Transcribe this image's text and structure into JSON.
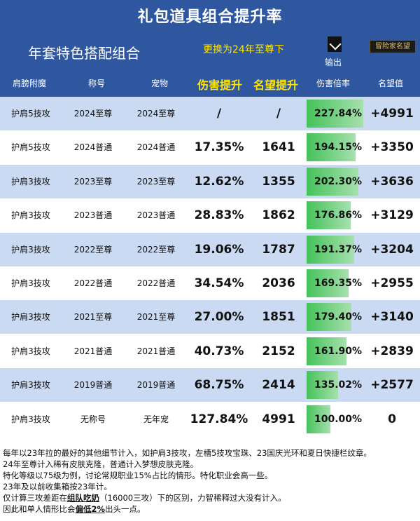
{
  "header": {
    "title": "礼包道具组合提升率",
    "subtitle": "年套特色搭配组合",
    "switch_label": "更换为24年至尊下",
    "export_label": "输出",
    "badge_label": "冒险家名望"
  },
  "columns": [
    "肩膀附魔",
    "称号",
    "宠物",
    "伤害提升",
    "名望提升",
    "伤害倍率",
    "名望值"
  ],
  "rows": [
    {
      "enchant": "护肩5技攻",
      "title": "2024至尊",
      "pet": "2024至尊",
      "dmg_up": "/",
      "fame_up": "/",
      "ratio": "227.84%",
      "ratio_fill": 0.9,
      "fame": "+4991"
    },
    {
      "enchant": "护肩5技攻",
      "title": "2024普通",
      "pet": "2024普通",
      "dmg_up": "17.35%",
      "fame_up": "1641",
      "ratio": "194.15%",
      "ratio_fill": 0.78,
      "fame": "+3350"
    },
    {
      "enchant": "护肩3技攻",
      "title": "2023至尊",
      "pet": "2023至尊",
      "dmg_up": "12.62%",
      "fame_up": "1355",
      "ratio": "202.30%",
      "ratio_fill": 0.82,
      "fame": "+3636"
    },
    {
      "enchant": "护肩3技攻",
      "title": "2023普通",
      "pet": "2023普通",
      "dmg_up": "28.83%",
      "fame_up": "1862",
      "ratio": "176.86%",
      "ratio_fill": 0.7,
      "fame": "+3129"
    },
    {
      "enchant": "护肩3技攻",
      "title": "2022至尊",
      "pet": "2022至尊",
      "dmg_up": "19.06%",
      "fame_up": "1787",
      "ratio": "191.37%",
      "ratio_fill": 0.76,
      "fame": "+3204"
    },
    {
      "enchant": "护肩3技攻",
      "title": "2022普通",
      "pet": "2022普通",
      "dmg_up": "34.54%",
      "fame_up": "2036",
      "ratio": "169.35%",
      "ratio_fill": 0.67,
      "fame": "+2955"
    },
    {
      "enchant": "护肩3技攻",
      "title": "2021至尊",
      "pet": "2021至尊",
      "dmg_up": "27.00%",
      "fame_up": "1851",
      "ratio": "179.40%",
      "ratio_fill": 0.71,
      "fame": "+3140"
    },
    {
      "enchant": "护肩3技攻",
      "title": "2021普通",
      "pet": "2021普通",
      "dmg_up": "40.73%",
      "fame_up": "2152",
      "ratio": "161.90%",
      "ratio_fill": 0.63,
      "fame": "+2839"
    },
    {
      "enchant": "护肩3技攻",
      "title": "2019普通",
      "pet": "2019普通",
      "dmg_up": "68.75%",
      "fame_up": "2414",
      "ratio": "135.02%",
      "ratio_fill": 0.5,
      "fame": "+2577"
    },
    {
      "enchant": "护肩3技攻",
      "title": "无称号",
      "pet": "无年宠",
      "dmg_up": "127.84%",
      "fame_up": "4991",
      "ratio": "100.00%",
      "ratio_fill": 0.38,
      "fame": "0"
    }
  ],
  "notes": {
    "line1": "每年以23年拉的最好的其他细节计入，如护肩3技攻，左槽5技攻宝珠、23国庆光环和夏日快捷栏纹章。",
    "line2": "24年至尊计入稀有皮肤克隆，普通计入梦想皮肤克隆。",
    "line3": "特化等级以75级为例，讨论常规职业15%占比的情形。特化职业会高一些。",
    "line4": "23年及以前收集箱按23年计。",
    "line5_a": "仅计算三攻差距在",
    "line5_b": "组队吃奶",
    "line5_c": "（16000三攻）下的区别，力智稀释过大没有计入。",
    "line6_a": "因此和单人情形比会",
    "line6_b": "偏低2%",
    "line6_c": "出头一点。"
  },
  "colors": {
    "header_bg": "#2f57a0",
    "yellow": "#ffe600",
    "row_blue": "#c9daf2",
    "bar_green": "#45c25a"
  }
}
